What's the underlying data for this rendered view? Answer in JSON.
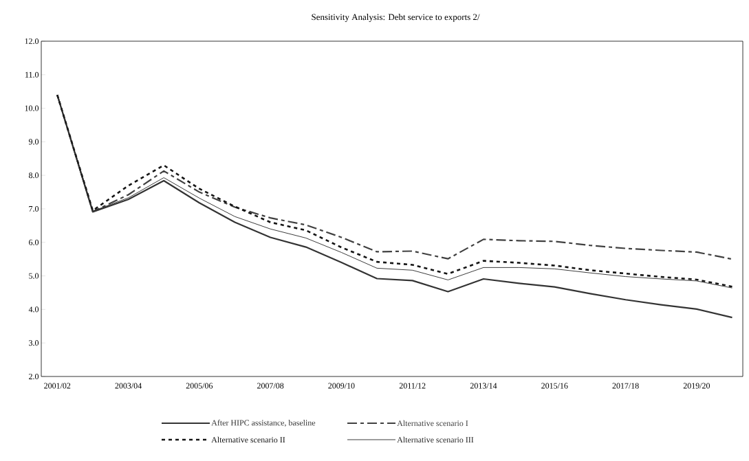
{
  "chart_data": {
    "type": "line",
    "title": "Sensitivity Analysis: Debt service to exports 2/",
    "categories": [
      "2001/02",
      null,
      "2003/04",
      null,
      "2005/06",
      null,
      "2007/08",
      null,
      "2009/10",
      null,
      "2011/12",
      null,
      "2013/14",
      null,
      "2015/16",
      null,
      "2017/18",
      null,
      "2019/20",
      null
    ],
    "ylim": [
      2,
      12
    ],
    "yticks": [
      {
        "value": 2,
        "label": "2.0"
      },
      {
        "value": 3,
        "label": "3.0"
      },
      {
        "value": 4,
        "label": "4.0"
      },
      {
        "value": 5,
        "label": "5.0"
      },
      {
        "value": 6,
        "label": "6.0"
      },
      {
        "value": 7,
        "label": "7.0"
      },
      {
        "value": 8,
        "label": "8.0"
      },
      {
        "value": 9,
        "label": "9.0"
      },
      {
        "value": 10,
        "label": "10.0"
      },
      {
        "value": 11,
        "label": "11.0"
      },
      {
        "value": 12,
        "label": "12.0"
      }
    ],
    "legend": "bottom",
    "series": [
      {
        "name": "After HIPC assistance, baseline",
        "color": "#333333",
        "line_style": "solid",
        "values": [
          10.4,
          6.91,
          7.28,
          7.84,
          7.18,
          6.6,
          6.15,
          5.86,
          5.4,
          4.92,
          4.86,
          4.53,
          4.91,
          4.78,
          4.67,
          4.47,
          4.29,
          4.14,
          4.01,
          3.76
        ]
      },
      {
        "name": "Alternative scenario I",
        "color": "#404040",
        "line_style": "dashdot",
        "values": [
          10.4,
          6.92,
          7.42,
          8.13,
          7.5,
          7.05,
          6.73,
          6.52,
          6.15,
          5.72,
          5.74,
          5.51,
          6.09,
          6.05,
          6.03,
          5.91,
          5.82,
          5.76,
          5.71,
          5.5
        ]
      },
      {
        "name": "Alternative scenario II",
        "color": "#141414",
        "line_style": "dotted",
        "values": [
          10.4,
          6.95,
          7.69,
          8.3,
          7.6,
          7.07,
          6.6,
          6.36,
          5.85,
          5.42,
          5.33,
          5.06,
          5.45,
          5.39,
          5.31,
          5.17,
          5.07,
          4.97,
          4.89,
          4.68
        ]
      },
      {
        "name": "Alternative scenario III",
        "color": "#262626",
        "line_style": "solid",
        "values": [
          10.4,
          6.93,
          7.33,
          7.93,
          7.32,
          6.77,
          6.4,
          6.13,
          5.7,
          5.23,
          5.17,
          4.88,
          5.25,
          5.25,
          5.21,
          5.09,
          4.98,
          4.91,
          4.85,
          4.64
        ]
      }
    ]
  }
}
